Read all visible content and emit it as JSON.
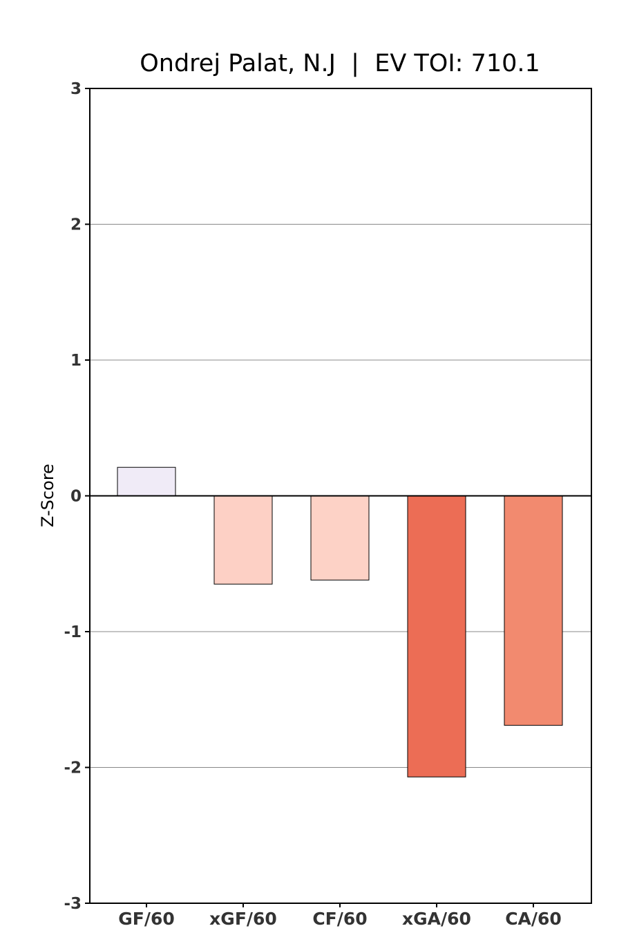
{
  "chart_data": {
    "type": "bar",
    "title": "Ondrej Palat, N.J  |  EV TOI: 710.1",
    "xlabel": "",
    "ylabel": "Z-Score",
    "ylim": [
      -3,
      3
    ],
    "yticks": [
      3,
      2,
      1,
      0,
      -1,
      -2,
      -3
    ],
    "grid": "horizontal",
    "categories": [
      "GF/60",
      "xGF/60",
      "CF/60",
      "xGA/60",
      "CA/60"
    ],
    "values": [
      0.21,
      -0.65,
      -0.62,
      -2.07,
      -1.69
    ],
    "colors": [
      "#f0ebf7",
      "#fdd0c5",
      "#fdd2c6",
      "#ec6d55",
      "#f28a6f"
    ]
  }
}
